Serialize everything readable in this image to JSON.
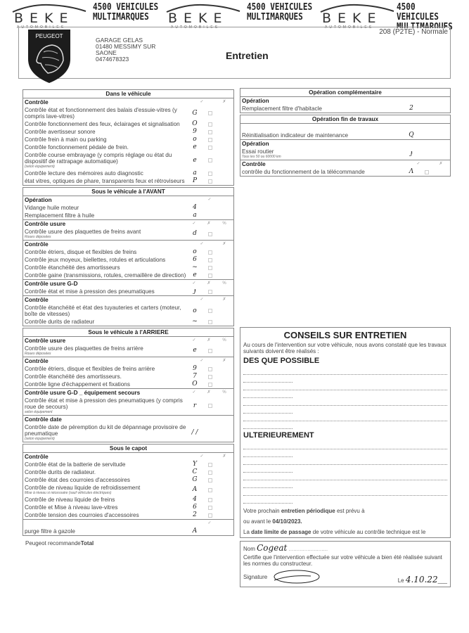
{
  "header": {
    "brand": "BEKE",
    "brand_sub": "AUTOMOBILES",
    "slogan1": "4500 VEHICULES",
    "slogan2": "MULTIMARQUES",
    "peugeot_logo": "PEUGEOT",
    "model": "208 (P2TE) - Normale",
    "garage": [
      "GARAGE GELAS",
      "01480 MESSIMY SUR",
      "SAONE",
      "0474678323"
    ],
    "title": "Entretien"
  },
  "col_headers": [
    "✓",
    "✗",
    "%"
  ],
  "left_sections": [
    {
      "title": "Dans le véhicule",
      "groups": [
        {
          "title": "Contrôle",
          "cols": 2,
          "rows": [
            {
              "label": "Contrôle état et fonctionnement des balais d'essuie-vitres (y compris lave-vitres)",
              "mark": "G"
            },
            {
              "label": "Contrôle fonctionnement des feux, éclairages et signalisation",
              "mark": "O"
            },
            {
              "label": "Contrôle avertisseur sonore",
              "mark": "9"
            },
            {
              "label": "Contrôle frein à main ou parking",
              "mark": "o"
            },
            {
              "label": "Contrôle fonctionnement pédale de frein.",
              "mark": "e"
            },
            {
              "label": "Contrôle course embrayage (y compris réglage ou état du dispositif de rattrapage automatique)",
              "note": "(selon équipement)",
              "mark": "e"
            },
            {
              "label": "Contrôle lecture des mémoires auto diagnostic",
              "mark": "a"
            },
            {
              "label": "état vitres, optiques de phare, transparents feux et rétroviseurs",
              "mark": "P"
            }
          ]
        }
      ]
    },
    {
      "title": "Sous le véhicule à l'AVANT",
      "groups": [
        {
          "title": "Opération",
          "cols": 1,
          "rows": [
            {
              "label": "Vidange huile moteur",
              "mark": "4"
            },
            {
              "label": "Remplacement filtre à huile",
              "mark": "a"
            }
          ]
        },
        {
          "title": "Contrôle usure",
          "cols": 3,
          "rows": [
            {
              "label": "Contrôle usure des plaquettes de freins avant",
              "note": "Roues déposées",
              "mark": "d"
            }
          ]
        },
        {
          "title": "Contrôle",
          "cols": 2,
          "rows": [
            {
              "label": "Contrôle étriers, disque et flexibles de freins",
              "mark": "o"
            },
            {
              "label": "Contrôle jeux moyeux, biellettes, rotules et articulations",
              "mark": "6"
            },
            {
              "label": "Contrôle étanchéité des amortisseurs",
              "mark": "~"
            },
            {
              "label": "Contrôle gaine (transmissions, rotules, cremaillère de direction)",
              "mark": "e"
            }
          ]
        },
        {
          "title": "Contrôle usure G-D",
          "cols": 3,
          "rows": [
            {
              "label": "Contrôle état et mise à pression des pneumatiques",
              "mark": "ɟ"
            }
          ]
        },
        {
          "title": "Contrôle",
          "cols": 2,
          "rows": [
            {
              "label": "Contrôle étanchéité et état des tuyauteries et carters (moteur, boîte de vitesses)",
              "mark": "o"
            },
            {
              "label": "Contrôle durits de radiateur",
              "mark": "~"
            }
          ]
        }
      ]
    },
    {
      "title": "Sous le véhicule à l'ARRIERE",
      "groups": [
        {
          "title": "Contrôle usure",
          "cols": 3,
          "rows": [
            {
              "label": "Contrôle usure des plaquettes de freins arrière",
              "note": "Roues déposées",
              "mark": "e"
            }
          ]
        },
        {
          "title": "Contrôle",
          "cols": 2,
          "rows": [
            {
              "label": "Contrôle étriers, disque et flexibles de freins arrière",
              "mark": "9"
            },
            {
              "label": "Contrôle étanchéité des amortisseurs.",
              "mark": "7"
            },
            {
              "label": "Contrôle ligne d'échappement et fixations",
              "mark": "O"
            }
          ]
        },
        {
          "title": "Contrôle usure G-D _ équipement secours",
          "cols": 3,
          "rows": [
            {
              "label": "Contrôle état et mise à pression des pneumatiques (y compris roue de secours)",
              "note": "selon équipement",
              "mark": "r"
            }
          ]
        },
        {
          "title": "Contrôle date",
          "cols": 0,
          "rows": [
            {
              "label": "Contrôle date de péremption du kit de dépannage provisoire de pneumatique",
              "note": "(selon équipement)",
              "mark": "/ /"
            }
          ]
        }
      ]
    },
    {
      "title": "Sous le capot",
      "groups": [
        {
          "title": "Contrôle",
          "cols": 2,
          "rows": [
            {
              "label": "Contrôle état de la batterie de servitude",
              "mark": "Y"
            },
            {
              "label": "Contrôle durits de radiateur.",
              "mark": "C"
            },
            {
              "label": "Contrôle état des courroies d'accessoires",
              "mark": "G"
            },
            {
              "label": "Contrôle de niveau liquide de refroidissement",
              "note": "Mise à niveau si nécessaire (sauf véhicules électriques)",
              "mark": "A"
            },
            {
              "label": "Contrôle de niveau liquide de freins",
              "mark": "4"
            },
            {
              "label": "Contrôle et Mise à niveau lave-vitres",
              "mark": "6"
            },
            {
              "label": "Contrôle tension des courroies d'accessoires",
              "mark": "2"
            }
          ]
        },
        {
          "title": "",
          "cols": 1,
          "rows": [
            {
              "label": "purge filtre à gazole",
              "mark": "A"
            }
          ]
        }
      ]
    }
  ],
  "right_sections": [
    {
      "title": "Opération complémentaire",
      "groups": [
        {
          "title": "Opération",
          "cols": 0,
          "rows": [
            {
              "label": "Remplacement filtre d'habitacle",
              "mark": "2"
            }
          ]
        }
      ]
    },
    {
      "title": "Opération fin de travaux",
      "groups": [
        {
          "title": " ",
          "cols": 0,
          "rows": [
            {
              "label": "Réinitialisation indicateur de maintenance",
              "mark": "Q"
            }
          ]
        },
        {
          "title": "Opération",
          "cols": 0,
          "rows": [
            {
              "label": "Essai routier",
              "note": "Tous les 50 ou 60000 km",
              "mark": "ɟ"
            }
          ]
        },
        {
          "title": "Contrôle",
          "cols": 2,
          "rows": [
            {
              "label": "contrôle du fonctionnement de la télécommande",
              "mark": "Λ"
            }
          ]
        }
      ]
    }
  ],
  "conseils": {
    "title": "CONSEILS SUR ENTRETIEN",
    "intro": "Au cours de l'intervention sur votre véhicule, nous avons constaté que les travaux suivants doivent être réalisés :",
    "asap": "DES QUE POSSIBLE",
    "later": "ULTERIEUREMENT",
    "next_pre": "Votre prochain ",
    "next_bold": "entretien périodique",
    "next_post": " est prévu à",
    "before_pre": "ou avant le ",
    "before_date": "04/10/2023.",
    "ct_pre": "La ",
    "ct_bold": "date limite de passage",
    "ct_post": " de votre véhicule au contrôle technique est le"
  },
  "certification": {
    "nom_label": "Nom",
    "nom_value": "Cogeat",
    "text": "Certifie que l'intervention effectuée sur votre véhicule a bien été réalisée suivant les normes du constructeur.",
    "signature_label": "Signature",
    "le_label": "Le",
    "date_value": "4.10.22"
  },
  "footer": {
    "pre": "Peugeot recommande",
    "brand": "Total"
  }
}
